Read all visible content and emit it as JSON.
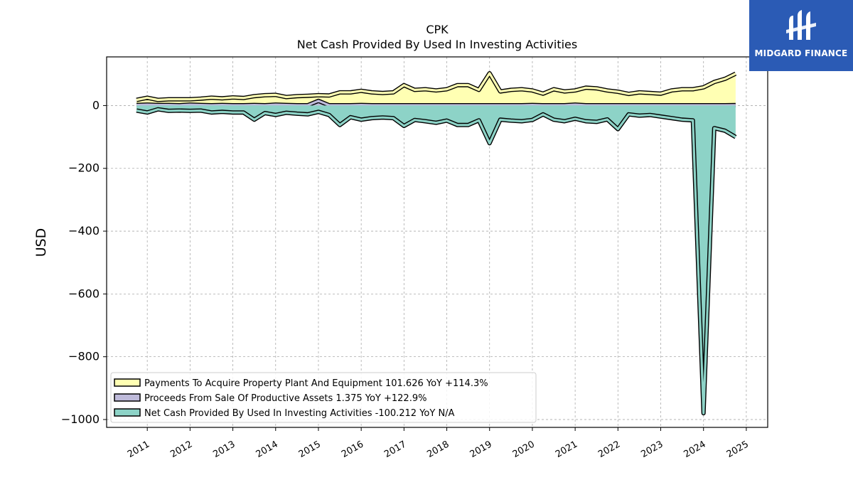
{
  "brand": {
    "name": "MIDGARD FINANCE",
    "color": "#2b5bb5"
  },
  "chart_data": {
    "type": "area",
    "title": "CPK",
    "subtitle": "Net Cash Provided By Used In Investing Activities",
    "xlabel": "",
    "ylabel": "USD",
    "ylim": [
      -1025,
      155
    ],
    "xlim": [
      2010.05,
      2025.5
    ],
    "yticks": [
      0,
      -200,
      -400,
      -600,
      -800,
      -1000
    ],
    "ytick_labels": [
      "0",
      "−200",
      "−400",
      "−600",
      "−800",
      "−1000"
    ],
    "xticks": [
      2011,
      2012,
      2013,
      2014,
      2015,
      2016,
      2017,
      2018,
      2019,
      2020,
      2021,
      2022,
      2023,
      2024,
      2025
    ],
    "xtick_labels": [
      "2011",
      "2012",
      "2013",
      "2014",
      "2015",
      "2016",
      "2017",
      "2018",
      "2019",
      "2020",
      "2021",
      "2022",
      "2023",
      "2024",
      "2025"
    ],
    "grid": true,
    "legend_position": "lower-left",
    "series": [
      {
        "name": "Payments To Acquire Property Plant And Equipment  101.626 YoY +114.3%",
        "color": "#ffffb3",
        "x": [
          2010.75,
          2011.0,
          2011.25,
          2011.5,
          2011.75,
          2012.0,
          2012.25,
          2012.5,
          2012.75,
          2013.0,
          2013.25,
          2013.5,
          2013.75,
          2014.0,
          2014.25,
          2014.5,
          2014.75,
          2015.0,
          2015.25,
          2015.5,
          2015.75,
          2016.0,
          2016.25,
          2016.5,
          2016.75,
          2017.0,
          2017.25,
          2017.5,
          2017.75,
          2018.0,
          2018.25,
          2018.5,
          2018.75,
          2019.0,
          2019.25,
          2019.5,
          2019.75,
          2020.0,
          2020.25,
          2020.5,
          2020.75,
          2021.0,
          2021.25,
          2021.5,
          2021.75,
          2022.0,
          2022.25,
          2022.5,
          2022.75,
          2023.0,
          2023.25,
          2023.5,
          2023.75,
          2024.0,
          2024.25,
          2024.5,
          2024.75
        ],
        "values": [
          18,
          25,
          18,
          20,
          20,
          20,
          22,
          25,
          23,
          26,
          24,
          30,
          33,
          34,
          27,
          30,
          31,
          33,
          32,
          42,
          42,
          47,
          42,
          40,
          42,
          65,
          50,
          52,
          48,
          52,
          65,
          65,
          50,
          103,
          45,
          50,
          52,
          48,
          38,
          52,
          45,
          48,
          57,
          55,
          48,
          44,
          37,
          42,
          40,
          38,
          48,
          52,
          52,
          58,
          75,
          85,
          101.6
        ]
      },
      {
        "name": "Proceeds From Sale Of Productive Assets  1.375 YoY +122.9%",
        "color": "#bebada",
        "x": [
          2010.75,
          2011.0,
          2011.25,
          2011.5,
          2011.75,
          2012.0,
          2012.25,
          2012.5,
          2012.75,
          2013.0,
          2013.25,
          2013.5,
          2013.75,
          2014.0,
          2014.25,
          2014.5,
          2014.75,
          2015.0,
          2015.25,
          2015.5,
          2015.75,
          2016.0,
          2016.25,
          2016.5,
          2016.75,
          2017.0,
          2017.25,
          2017.5,
          2017.75,
          2018.0,
          2018.25,
          2018.5,
          2018.75,
          2019.0,
          2019.25,
          2019.5,
          2019.75,
          2020.0,
          2020.25,
          2020.5,
          2020.75,
          2021.0,
          2021.25,
          2021.5,
          2021.75,
          2022.0,
          2022.25,
          2022.5,
          2022.75,
          2023.0,
          2023.25,
          2023.5,
          2023.75,
          2024.0,
          2024.25,
          2024.5,
          2024.75
        ],
        "values": [
          2,
          3,
          2,
          2,
          1,
          3,
          2,
          1,
          2,
          1,
          1,
          2,
          1,
          3,
          2,
          1,
          1,
          15,
          1,
          1,
          1,
          2,
          1,
          1,
          1,
          1,
          1,
          1,
          1,
          1,
          1,
          1,
          1,
          1,
          1,
          1,
          1,
          2,
          1,
          1,
          1,
          3,
          1,
          1,
          1,
          1,
          1,
          1,
          1,
          1,
          1,
          1,
          1,
          1,
          1,
          1,
          1.4
        ]
      },
      {
        "name": "Net Cash Provided By Used In Investing Activities  -100.212 YoY N/A",
        "color": "#8dd3c7",
        "x": [
          2010.75,
          2011.0,
          2011.25,
          2011.5,
          2011.75,
          2012.0,
          2012.25,
          2012.5,
          2012.75,
          2013.0,
          2013.25,
          2013.5,
          2013.75,
          2014.0,
          2014.25,
          2014.5,
          2014.75,
          2015.0,
          2015.25,
          2015.5,
          2015.75,
          2016.0,
          2016.25,
          2016.5,
          2016.75,
          2017.0,
          2017.25,
          2017.5,
          2017.75,
          2018.0,
          2018.25,
          2018.5,
          2018.75,
          2019.0,
          2019.25,
          2019.5,
          2019.75,
          2020.0,
          2020.25,
          2020.5,
          2020.75,
          2021.0,
          2021.25,
          2021.5,
          2021.75,
          2022.0,
          2022.25,
          2022.5,
          2022.75,
          2023.0,
          2023.25,
          2023.5,
          2023.75,
          2024.0,
          2024.25,
          2024.5,
          2024.75
        ],
        "values": [
          -16,
          -22,
          -12,
          -17,
          -16,
          -17,
          -16,
          -22,
          -20,
          -22,
          -22,
          -45,
          -24,
          -30,
          -23,
          -26,
          -28,
          -20,
          -30,
          -62,
          -37,
          -45,
          -40,
          -38,
          -40,
          -65,
          -46,
          -50,
          -55,
          -48,
          -62,
          -62,
          -47,
          -120,
          -45,
          -48,
          -50,
          -46,
          -28,
          -45,
          -50,
          -42,
          -50,
          -52,
          -44,
          -75,
          -28,
          -32,
          -30,
          -35,
          -40,
          -45,
          -47,
          -980,
          -72,
          -80,
          -100.2
        ]
      }
    ]
  }
}
